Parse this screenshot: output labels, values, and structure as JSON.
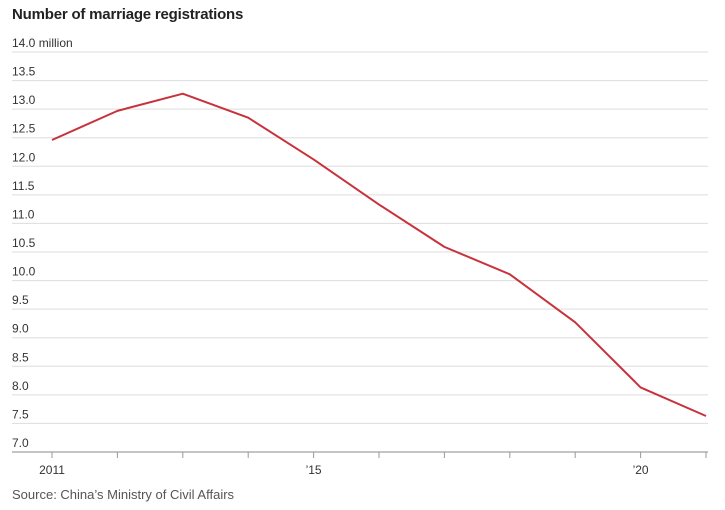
{
  "title": "Number of marriage registrations",
  "source": "Source: China’s Ministry of Civil Affairs",
  "colors": {
    "line": "#c8323c",
    "grid": "#dddddd",
    "axis_ticks": "#999999"
  },
  "chart_data": {
    "type": "line",
    "title": "Number of marriage registrations",
    "xlabel": "",
    "ylabel": "",
    "y_unit_label": "million",
    "x": [
      2011,
      2012,
      2013,
      2014,
      2015,
      2016,
      2017,
      2018,
      2019,
      2020,
      2021
    ],
    "series": [
      {
        "values": [
          12.46,
          12.97,
          13.27,
          12.85,
          12.12,
          11.33,
          10.59,
          10.11,
          9.27,
          8.13,
          7.63
        ]
      }
    ],
    "ylim": [
      7.0,
      14.0
    ],
    "y_ticks": [
      "7.0",
      "7.5",
      "8.0",
      "8.5",
      "9.0",
      "9.5",
      "10.0",
      "10.5",
      "11.0",
      "11.5",
      "12.0",
      "12.5",
      "13.0",
      "13.5",
      "14.0"
    ],
    "y_tick_values": [
      7.0,
      7.5,
      8.0,
      8.5,
      9.0,
      9.5,
      10.0,
      10.5,
      11.0,
      11.5,
      12.0,
      12.5,
      13.0,
      13.5,
      14.0
    ],
    "x_tick_labels": [
      {
        "x": 2011,
        "label": "2011"
      },
      {
        "x": 2015,
        "label": "’15"
      },
      {
        "x": 2020,
        "label": "’20"
      }
    ],
    "grid": true,
    "legend": "none"
  }
}
